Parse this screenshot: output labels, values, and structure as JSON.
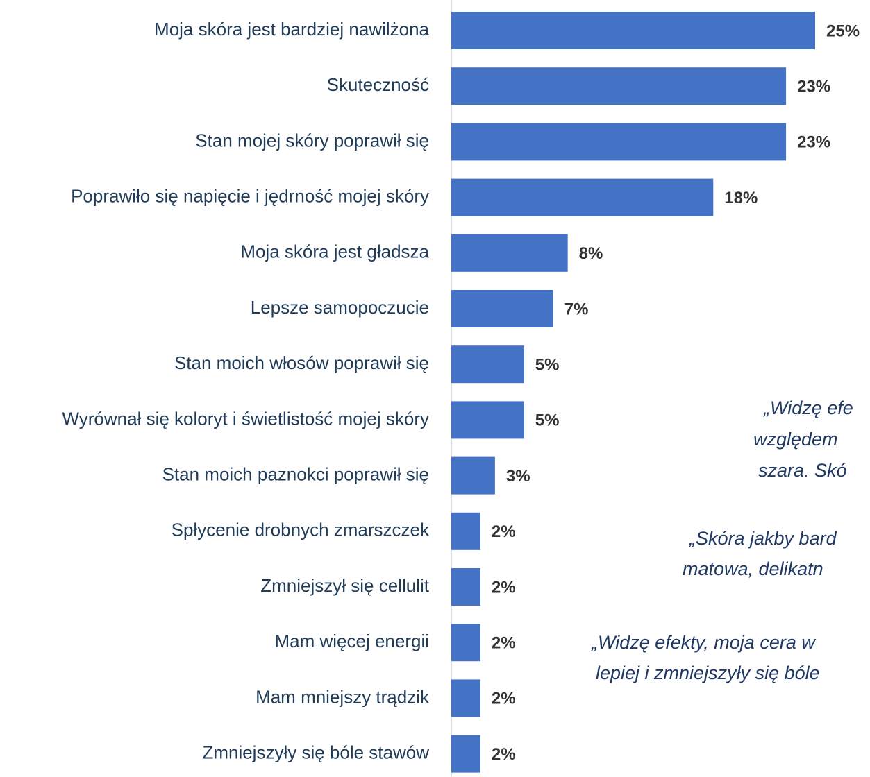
{
  "chart_data": {
    "type": "bar",
    "orientation": "horizontal",
    "categories": [
      "Moja skóra jest bardziej nawilżona",
      "Skuteczność",
      "Stan mojej skóry poprawił się",
      "Poprawiło się napięcie i jędrność mojej skóry",
      "Moja skóra jest gładsza",
      "Lepsze samopoczucie",
      "Stan moich włosów poprawił się",
      "Wyrównał się koloryt i świetlistość mojej skóry",
      "Stan moich paznokci poprawił się",
      "Spłycenie drobnych zmarszczek",
      "Zmniejszył się cellulit",
      "Mam więcej energii",
      "Mam mniejszy trądzik",
      "Zmniejszyły się bóle stawów"
    ],
    "values": [
      25,
      23,
      23,
      18,
      8,
      7,
      5,
      5,
      3,
      2,
      2,
      2,
      2,
      2
    ],
    "value_labels": [
      "25%",
      "23%",
      "23%",
      "18%",
      "8%",
      "7%",
      "5%",
      "5%",
      "3%",
      "2%",
      "2%",
      "2%",
      "2%",
      "2%"
    ],
    "color": "#4472c4",
    "annotations": [
      [
        "„Widzę efe",
        "względem",
        "szara. Skó"
      ],
      [
        "„Skóra jakby bard",
        "matowa, delikatn"
      ],
      [
        "„Widzę efekty, moja cera w",
        "lepiej i zmniejszyły się bóle"
      ]
    ]
  }
}
